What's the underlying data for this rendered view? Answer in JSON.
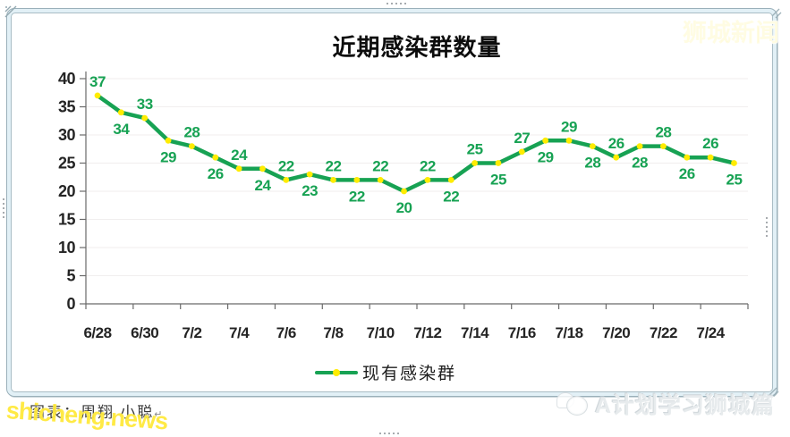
{
  "logo": {
    "text": "狮城新闻",
    "color": "#ffe646"
  },
  "watermark": {
    "text": "shicheng.news",
    "color": "#ffe93c"
  },
  "credit": {
    "text": "图表：周翔 小聪",
    "paragraph_mark": "↵"
  },
  "channel": {
    "text": "A计划学习狮城篇"
  },
  "chart_data": {
    "type": "line",
    "title": "近期感染群数量",
    "categories": [
      "6/28",
      "6/29",
      "6/30",
      "7/1",
      "7/2",
      "7/3",
      "7/4",
      "7/5",
      "7/6",
      "7/7",
      "7/8",
      "7/9",
      "7/10",
      "7/11",
      "7/12",
      "7/13",
      "7/14",
      "7/15",
      "7/16",
      "7/17",
      "7/18",
      "7/19",
      "7/20",
      "7/21",
      "7/22",
      "7/23",
      "7/24",
      "7/25"
    ],
    "series": [
      {
        "name": "现有感染群",
        "values": [
          37,
          34,
          33,
          29,
          28,
          26,
          24,
          24,
          22,
          23,
          22,
          22,
          22,
          20,
          22,
          22,
          25,
          25,
          27,
          29,
          29,
          28,
          26,
          28,
          28,
          26,
          26,
          25
        ]
      }
    ],
    "xlabel": "",
    "ylabel": "",
    "ylim": [
      0,
      40
    ],
    "ytick_step": 5,
    "xtick_every": 2,
    "grid": true,
    "legend_position": "bottom",
    "data_labels": "alternate-above-below-starting-above",
    "colors": {
      "line": "#17a253",
      "marker": "#ffec00",
      "labels": "#17a253",
      "axis": "#6a6a6a",
      "grid": "#f1eeee"
    }
  }
}
